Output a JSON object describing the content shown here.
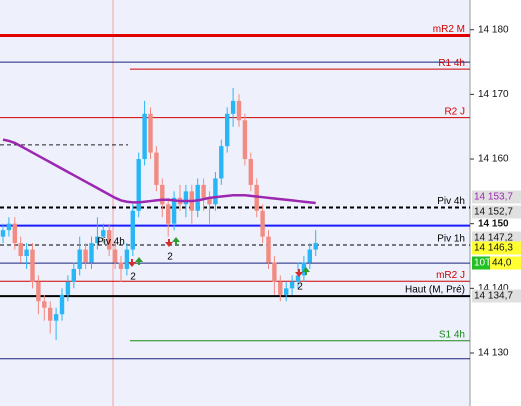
{
  "chart_data": {
    "type": "candlestick",
    "ylim": [
      14121.8,
      14184.6
    ],
    "yticks": [
      {
        "value": 14180,
        "label": "14 180"
      },
      {
        "value": 14170,
        "label": "14 170"
      },
      {
        "value": 14160,
        "label": "14 160"
      },
      {
        "value": 14150,
        "label": "14 150"
      },
      {
        "value": 14140,
        "label": "14 140"
      },
      {
        "value": 14130,
        "label": "14 130"
      }
    ],
    "up_color": "#29b6f6",
    "down_color": "#f28b82",
    "open": [
      14148,
      14149,
      14150,
      14147,
      14145,
      14146,
      14141,
      14138,
      14137,
      14135,
      14136,
      14139,
      14141,
      14143,
      14146,
      14144,
      14147,
      14148,
      14149,
      14146,
      14144,
      14143,
      14146,
      14152,
      14160,
      14167,
      14161,
      14156,
      14153,
      14150,
      14154,
      14153,
      14155,
      14152,
      14156,
      14154,
      14153,
      14157,
      14162,
      14167,
      14169,
      14166,
      14160,
      14156,
      14152,
      14148,
      14144,
      14141,
      14139,
      14140,
      14141,
      14142,
      14144,
      14146
    ],
    "high": [
      14150,
      14151,
      14151,
      14148,
      14147,
      14147,
      14142,
      14139,
      14138,
      14137,
      14140,
      14142,
      14144,
      14148,
      14147,
      14148,
      14151,
      14150,
      14150,
      14147,
      14145,
      14147,
      14153,
      14161,
      14169,
      14168,
      14162,
      14157,
      14154,
      14155,
      14156,
      14156,
      14156,
      14157,
      14157,
      14155,
      14158,
      14163,
      14168,
      14171,
      14170,
      14167,
      14161,
      14157,
      14153,
      14149,
      14145,
      14142,
      14141,
      14142,
      14144,
      14145,
      14147,
      14149
    ],
    "low": [
      14147,
      14148,
      14146,
      14144,
      14143,
      14140,
      14136,
      14135,
      14133,
      14132,
      14135,
      14138,
      14140,
      14142,
      14143,
      14143,
      14146,
      14147,
      14145,
      14143,
      14141,
      14142,
      14145,
      14151,
      14159,
      14160,
      14155,
      14151,
      14148,
      14149,
      14152,
      14151,
      14150,
      14151,
      14152,
      14150,
      14152,
      14156,
      14161,
      14165,
      14165,
      14159,
      14155,
      14151,
      14147,
      14143,
      14139,
      14138,
      14138,
      14139,
      14140,
      14141,
      14143,
      14145
    ],
    "close": [
      14149,
      14150,
      14147,
      14145,
      14146,
      14141,
      14138,
      14137,
      14135,
      14136,
      14139,
      14141,
      14143,
      14146,
      14144,
      14147,
      14148,
      14149,
      14146,
      14144,
      14143,
      14146,
      14152,
      14160,
      14167,
      14161,
      14156,
      14153,
      14150,
      14154,
      14153,
      14155,
      14152,
      14156,
      14154,
      14153,
      14157,
      14162,
      14167,
      14169,
      14166,
      14160,
      14156,
      14152,
      14148,
      14144,
      14141,
      14139,
      14140,
      14141,
      14142,
      14144,
      14146,
      14147
    ],
    "moving_average": {
      "color": "#9c27b0",
      "values": [
        14163,
        14162.8,
        14162.5,
        14162,
        14161.5,
        14161,
        14160.5,
        14160,
        14159.5,
        14159,
        14158.5,
        14158,
        14157.5,
        14157,
        14156.5,
        14156,
        14155.5,
        14155,
        14154.5,
        14154,
        14153.6,
        14153.4,
        14153.3,
        14153.3,
        14153.4,
        14153.5,
        14153.6,
        14153.7,
        14153.7,
        14153.6,
        14153.5,
        14153.5,
        14153.5,
        14153.6,
        14153.8,
        14154,
        14154.1,
        14154.2,
        14154.3,
        14154.4,
        14154.4,
        14154.4,
        14154.3,
        14154.2,
        14154.1,
        14154,
        14153.9,
        14153.8,
        14153.7,
        14153.6,
        14153.5,
        14153.4,
        14153.3,
        14153.2
      ]
    },
    "levels": [
      {
        "name": "mR2 M",
        "value": 14179.1,
        "color": "#e00000",
        "width": 3,
        "style": "solid",
        "span": "full",
        "label_color": "#d00000"
      },
      {
        "name": null,
        "value": 14175.0,
        "color": "#1a237e",
        "width": 1,
        "style": "solid",
        "span": "full"
      },
      {
        "name": "R1 4h",
        "value": 14173.9,
        "color": "#d00000",
        "width": 1,
        "style": "solid",
        "span": "right",
        "label_color": "#d00000"
      },
      {
        "name": "R2 J",
        "value": 14166.4,
        "color": "#d00000",
        "width": 1,
        "style": "solid",
        "span": "full",
        "label_color": "#d00000"
      },
      {
        "name": null,
        "value": 14162.2,
        "color": "#222",
        "width": 1,
        "style": "dashed",
        "span": "left"
      },
      {
        "name": "Piv 4h",
        "value": 14152.5,
        "color": "#000",
        "width": 2,
        "style": "dashed",
        "span": "full",
        "label_color": "#000"
      },
      {
        "name": null,
        "value": 14149.7,
        "color": "#1a1aff",
        "width": 2,
        "style": "solid",
        "span": "full"
      },
      {
        "name": "Piv 1h",
        "value": 14146.7,
        "color": "#000",
        "width": 1,
        "style": "dashed",
        "span": "full",
        "label_color": "#000"
      },
      {
        "name": null,
        "value": 14143.9,
        "color": "#1a237e",
        "width": 1,
        "style": "solid",
        "span": "full"
      },
      {
        "name": "mR2 J",
        "value": 14141.1,
        "color": "#d00000",
        "width": 1,
        "style": "solid",
        "span": "full",
        "label_color": "#d00000"
      },
      {
        "name": "Haut (M, Pré)",
        "value": 14138.8,
        "color": "#000",
        "width": 2,
        "style": "solid",
        "span": "full",
        "label_color": "#000"
      },
      {
        "name": "S1 4h",
        "value": 14131.9,
        "color": "#1b8a1b",
        "width": 1,
        "style": "solid",
        "span": "right",
        "label_color": "#1b8a1b"
      },
      {
        "name": null,
        "value": 14129.1,
        "color": "#1a237e",
        "width": 1,
        "style": "solid",
        "span": "full"
      }
    ],
    "annotation": "Piv 4h",
    "signals": [
      "2",
      "2",
      "2"
    ],
    "price_boxes": [
      "14 153,7",
      "14 152,7",
      "14 147,2",
      "14 146,3",
      "10T",
      "44,0",
      "14 134,7"
    ]
  }
}
